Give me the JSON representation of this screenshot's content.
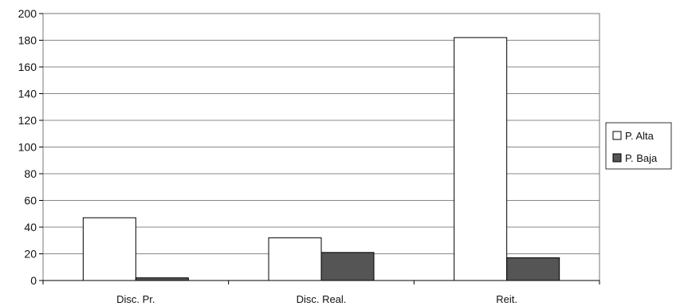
{
  "chart_data": {
    "type": "bar",
    "title": "",
    "xlabel": "",
    "ylabel": "",
    "categories": [
      "Disc. Pr.",
      "Disc. Real.",
      "Reit."
    ],
    "series": [
      {
        "name": "P. Alta",
        "values": [
          47,
          32,
          182
        ]
      },
      {
        "name": "P. Baja",
        "values": [
          2,
          21,
          17
        ]
      }
    ],
    "ylim": [
      0,
      200
    ],
    "yticks": [
      0,
      20,
      40,
      60,
      80,
      100,
      120,
      140,
      160,
      180,
      200
    ],
    "grid": true,
    "legend": "right",
    "colors": {
      "P. Alta": "#ffffff",
      "P. Baja": "#555555"
    }
  }
}
